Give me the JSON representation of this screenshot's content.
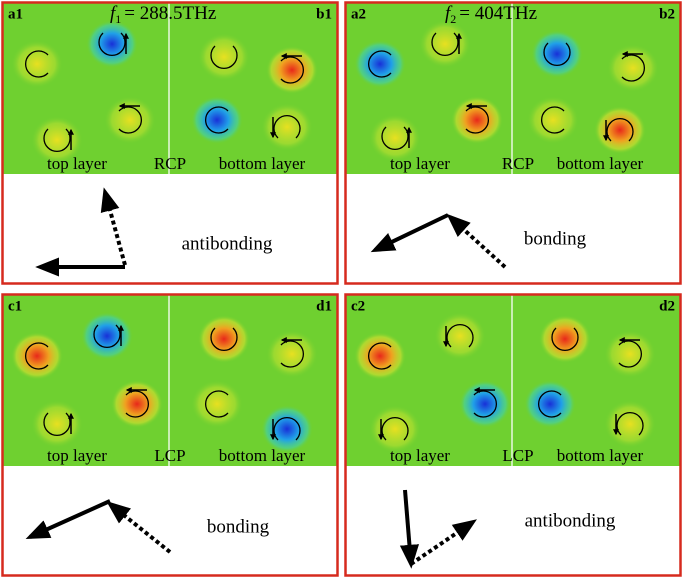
{
  "panels": [
    {
      "label_left": "a1",
      "label_right": "b1",
      "frequency": {
        "symbol": "f",
        "subscript": "1",
        "value": "= 288.5THz"
      },
      "left_caption": "top layer",
      "polarization": "RCP",
      "right_caption": "bottom layer",
      "mode": "antibonding"
    },
    {
      "label_left": "a2",
      "label_right": "b2",
      "frequency": {
        "symbol": "f",
        "subscript": "2",
        "value": "= 404THz"
      },
      "left_caption": "top layer",
      "polarization": "RCP",
      "right_caption": "bottom layer",
      "mode": "bonding"
    },
    {
      "label_left": "c1",
      "label_right": "d1",
      "left_caption": "top layer",
      "polarization": "LCP",
      "right_caption": "bottom layer",
      "mode": "bonding"
    },
    {
      "label_left": "c2",
      "label_right": "d2",
      "left_caption": "top layer",
      "polarization": "LCP",
      "right_caption": "bottom layer",
      "mode": "antibonding"
    }
  ]
}
